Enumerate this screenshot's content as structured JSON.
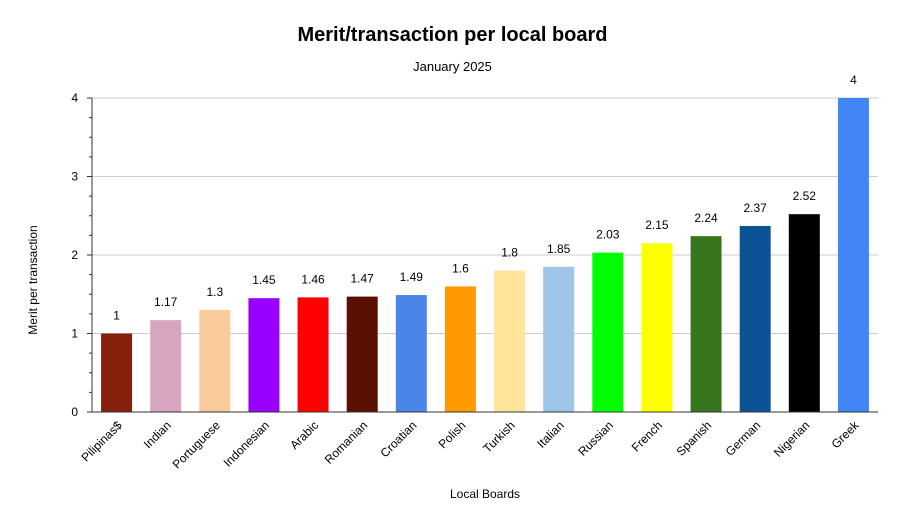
{
  "chart_data": {
    "type": "bar",
    "title": "Merit/transaction per local board",
    "subtitle": "January 2025",
    "xlabel": "Local Boards",
    "ylabel": "Merit per transaction",
    "ylim": [
      0,
      4
    ],
    "yticks": [
      "0",
      "1",
      "2",
      "3",
      "4"
    ],
    "grid": true,
    "legend": "none",
    "categories": [
      "Pilipinas$",
      "Indian",
      "Portuguese",
      "Indonesian",
      "Arabic",
      "Romanian",
      "Croatian",
      "Polish",
      "Turkish",
      "Italian",
      "Russian",
      "French",
      "Spanish",
      "German",
      "Nigerian",
      "Greek"
    ],
    "values": [
      1,
      1.17,
      1.3,
      1.45,
      1.46,
      1.47,
      1.49,
      1.6,
      1.8,
      1.85,
      2.03,
      2.15,
      2.24,
      2.37,
      2.52,
      4
    ],
    "value_labels": [
      "1",
      "1.17",
      "1.3",
      "1.45",
      "1.46",
      "1.47",
      "1.49",
      "1.6",
      "1.8",
      "1.85",
      "2.03",
      "2.15",
      "2.24",
      "2.37",
      "2.52",
      "4"
    ],
    "colors": [
      "#85200c",
      "#d5a6bd",
      "#f9cb9c",
      "#9900ff",
      "#ff0000",
      "#5b0f00",
      "#4a86e8",
      "#ff9900",
      "#ffe599",
      "#9fc5e8",
      "#00ff00",
      "#ffff00",
      "#38761d",
      "#0b5394",
      "#000000",
      "#4285f4"
    ]
  }
}
